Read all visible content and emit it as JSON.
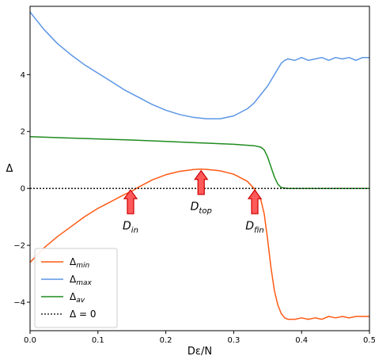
{
  "chart_data": {
    "type": "line",
    "xlabel": "Dε/N",
    "ylabel": "Δ",
    "xlim": [
      0.0,
      0.5
    ],
    "ylim": [
      -5.0,
      6.4
    ],
    "xticks": [
      0.0,
      0.1,
      0.2,
      0.3,
      0.4,
      0.5
    ],
    "xtick_labels": [
      "0.0",
      "0.1",
      "0.2",
      "0.3",
      "0.4",
      "0.5"
    ],
    "yticks": [
      -4,
      -2,
      0,
      2,
      4
    ],
    "ytick_labels": [
      "−4",
      "−2",
      "0",
      "2",
      "4"
    ],
    "grid": false,
    "legend_position": "lower-left",
    "colors": {
      "min": "#ff5a14",
      "max": "#5b96e6",
      "av": "#1f8c1f",
      "zero": "#000000",
      "arrow_fill": "#ff5a5a",
      "arrow_stroke": "#cc0000"
    },
    "series": [
      {
        "key": "min",
        "name": "Δ",
        "sub": "min",
        "x": [
          0.0,
          0.02,
          0.04,
          0.06,
          0.08,
          0.1,
          0.12,
          0.14,
          0.15,
          0.16,
          0.18,
          0.2,
          0.22,
          0.24,
          0.25,
          0.26,
          0.28,
          0.3,
          0.32,
          0.33,
          0.34,
          0.345,
          0.35,
          0.355,
          0.36,
          0.365,
          0.37,
          0.375,
          0.38,
          0.39,
          0.4,
          0.41,
          0.42,
          0.43,
          0.44,
          0.45,
          0.46,
          0.47,
          0.48,
          0.49,
          0.5
        ],
        "y": [
          -2.6,
          -2.1,
          -1.7,
          -1.35,
          -1.0,
          -0.7,
          -0.45,
          -0.2,
          -0.1,
          0.05,
          0.3,
          0.48,
          0.6,
          0.66,
          0.68,
          0.67,
          0.62,
          0.5,
          0.25,
          0.0,
          -0.4,
          -0.9,
          -1.8,
          -2.8,
          -3.6,
          -4.1,
          -4.4,
          -4.55,
          -4.6,
          -4.6,
          -4.55,
          -4.6,
          -4.55,
          -4.6,
          -4.5,
          -4.55,
          -4.5,
          -4.55,
          -4.5,
          -4.5,
          -4.5
        ]
      },
      {
        "key": "max",
        "name": "Δ",
        "sub": "max",
        "x": [
          0.0,
          0.02,
          0.04,
          0.06,
          0.08,
          0.1,
          0.12,
          0.14,
          0.16,
          0.18,
          0.2,
          0.22,
          0.24,
          0.26,
          0.28,
          0.3,
          0.32,
          0.33,
          0.34,
          0.35,
          0.36,
          0.365,
          0.37,
          0.375,
          0.38,
          0.39,
          0.4,
          0.41,
          0.42,
          0.43,
          0.44,
          0.45,
          0.46,
          0.47,
          0.48,
          0.49,
          0.5
        ],
        "y": [
          6.2,
          5.6,
          5.1,
          4.7,
          4.35,
          4.05,
          3.75,
          3.45,
          3.2,
          2.95,
          2.75,
          2.6,
          2.5,
          2.45,
          2.45,
          2.55,
          2.8,
          3.0,
          3.3,
          3.6,
          4.0,
          4.2,
          4.4,
          4.5,
          4.55,
          4.5,
          4.6,
          4.5,
          4.55,
          4.6,
          4.5,
          4.6,
          4.55,
          4.6,
          4.5,
          4.6,
          4.6
        ]
      },
      {
        "key": "av",
        "name": "Δ",
        "sub": "av",
        "x": [
          0.0,
          0.05,
          0.1,
          0.15,
          0.2,
          0.25,
          0.3,
          0.33,
          0.34,
          0.345,
          0.35,
          0.355,
          0.36,
          0.365,
          0.37,
          0.38,
          0.4,
          0.45,
          0.5
        ],
        "y": [
          1.82,
          1.78,
          1.74,
          1.7,
          1.65,
          1.6,
          1.55,
          1.5,
          1.45,
          1.35,
          1.1,
          0.75,
          0.4,
          0.15,
          0.03,
          0.0,
          0.0,
          0.0,
          0.0
        ]
      },
      {
        "key": "zero",
        "name": "Δ = 0",
        "sub": "",
        "x": [
          0.0,
          0.5
        ],
        "y": [
          0.0,
          0.0
        ]
      }
    ],
    "annotations": [
      {
        "key": "in",
        "base": "D",
        "sub": "in",
        "x": 0.148,
        "y": 0.0
      },
      {
        "key": "top",
        "base": "D",
        "sub": "top",
        "x": 0.252,
        "y": 0.68
      },
      {
        "key": "fin",
        "base": "D",
        "sub": "fin",
        "x": 0.331,
        "y": 0.0
      }
    ]
  }
}
